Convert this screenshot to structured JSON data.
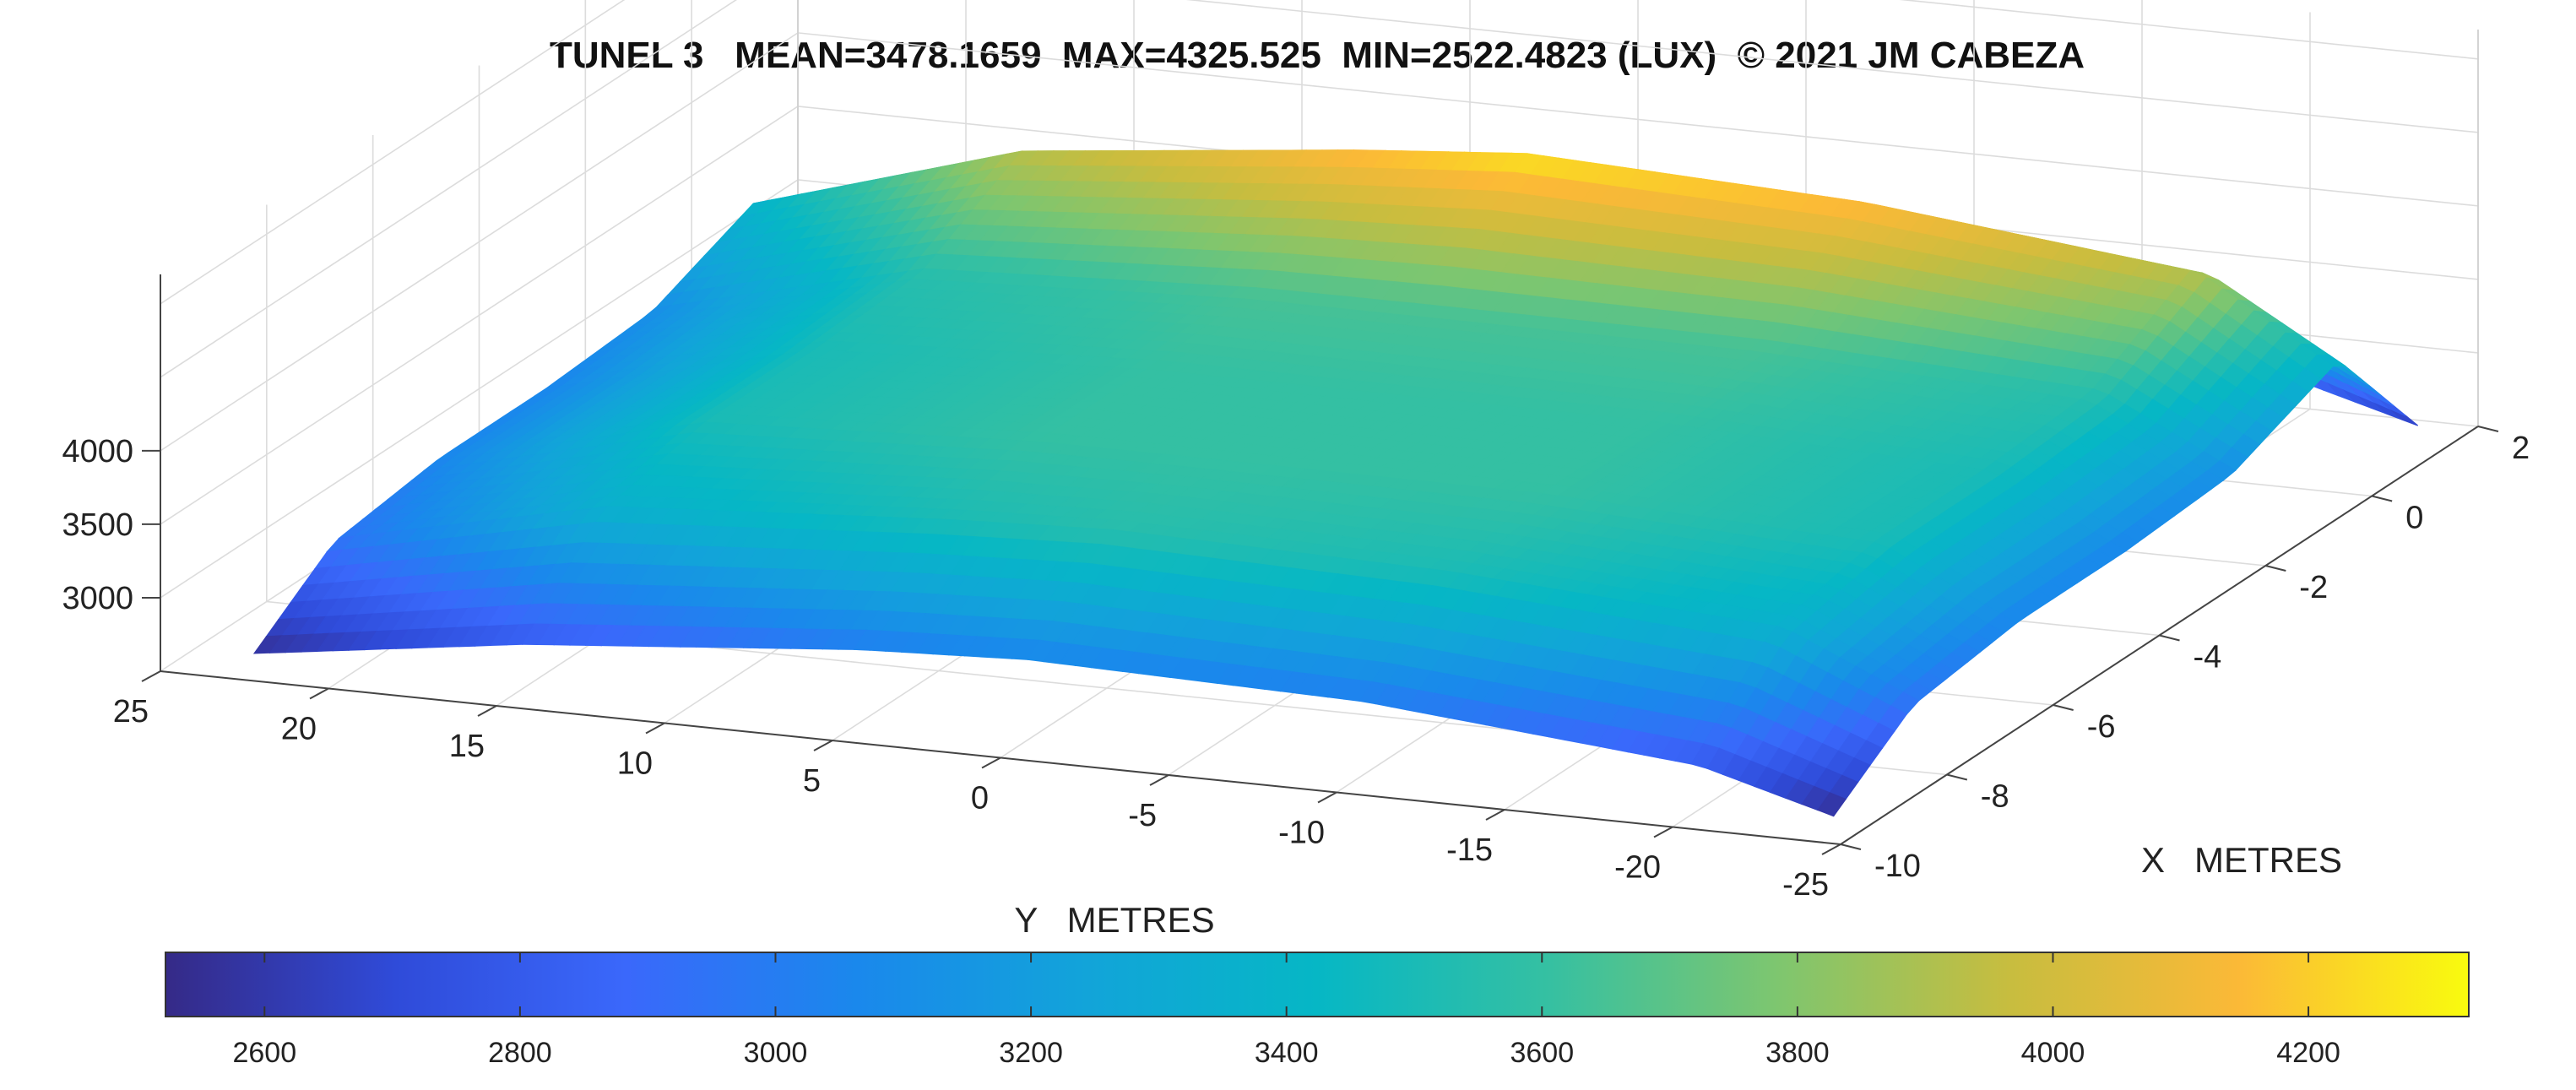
{
  "chart_data": {
    "type": "surface",
    "title": "TUNEL 3   MEAN=3478.1659  MAX=4325.525  MIN=2522.4823 (LUX)  © 2021 JM CABEZA",
    "xlabel": "X   METRES",
    "ylabel": "Y   METRES",
    "zlabel": "",
    "x_ticks": [
      -10,
      -8,
      -6,
      -4,
      -2,
      0,
      2
    ],
    "y_ticks": [
      25,
      20,
      15,
      10,
      5,
      0,
      -5,
      -10,
      -15,
      -20,
      -25
    ],
    "z_ticks": [
      3000,
      3500,
      4000
    ],
    "xlim": [
      -10,
      2
    ],
    "ylim": [
      -25,
      25
    ],
    "zlim": [
      2500,
      5200
    ],
    "colormap": "parula",
    "colorbar": {
      "location": "bottom",
      "range": [
        2522.4823,
        4325.525
      ],
      "ticks": [
        2600,
        2800,
        3000,
        3200,
        3400,
        3600,
        3800,
        4000,
        4200
      ]
    },
    "grid": true,
    "stats": {
      "mean": 3478.1659,
      "max": 4325.525,
      "min": 2522.4823,
      "unit": "LUX"
    },
    "surface_samples": {
      "x": [
        -9.5,
        -8,
        -6,
        -4,
        -2,
        0,
        1.5
      ],
      "y": [
        23,
        15,
        5,
        0,
        -10,
        -20,
        -24
      ],
      "z": [
        [
          2550,
          2950,
          3050,
          3050,
          3100,
          3400,
          2600
        ],
        [
          2800,
          3350,
          3500,
          3500,
          3550,
          3950,
          2850
        ],
        [
          3000,
          3500,
          3600,
          3600,
          3650,
          4200,
          3000
        ],
        [
          3050,
          3550,
          3600,
          3600,
          3650,
          4300,
          3050
        ],
        [
          3000,
          3500,
          3600,
          3600,
          3650,
          4200,
          3000
        ],
        [
          2800,
          3350,
          3500,
          3500,
          3550,
          3950,
          2850
        ],
        [
          2550,
          2950,
          3050,
          3050,
          3100,
          3400,
          2600
        ]
      ]
    }
  }
}
